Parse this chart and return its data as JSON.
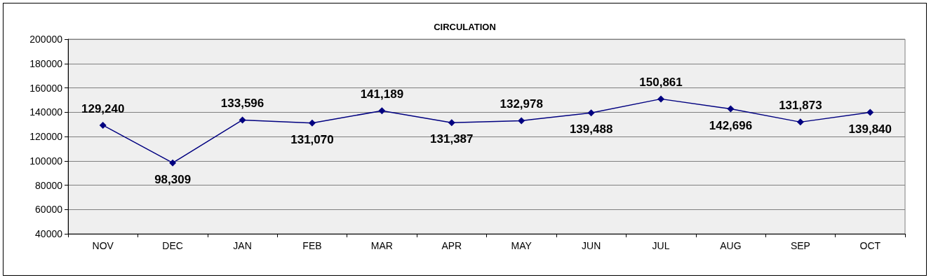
{
  "chart_data": {
    "type": "line",
    "title": "CIRCULATION",
    "categories": [
      "NOV",
      "DEC",
      "JAN",
      "FEB",
      "MAR",
      "APR",
      "MAY",
      "JUN",
      "JUL",
      "AUG",
      "SEP",
      "OCT"
    ],
    "values": [
      129240,
      98309,
      133596,
      131070,
      141189,
      131387,
      132978,
      139488,
      150861,
      142696,
      131873,
      139840
    ],
    "value_labels": [
      "129,240",
      "98,309",
      "133,596",
      "131,070",
      "141,189",
      "131,387",
      "132,978",
      "139,488",
      "150,861",
      "142,696",
      "131,873",
      "139,840"
    ],
    "color": "#000080",
    "marker": "diamond",
    "line_style": "solid",
    "ylim": [
      40000,
      200000
    ],
    "yticks": [
      40000,
      60000,
      80000,
      100000,
      120000,
      140000,
      160000,
      180000,
      200000
    ],
    "grid": "y"
  }
}
